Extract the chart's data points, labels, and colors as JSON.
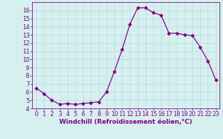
{
  "x": [
    0,
    1,
    2,
    3,
    4,
    5,
    6,
    7,
    8,
    9,
    10,
    11,
    12,
    13,
    14,
    15,
    16,
    17,
    18,
    19,
    20,
    21,
    22,
    23
  ],
  "y": [
    6.5,
    5.8,
    5.0,
    4.5,
    4.6,
    4.5,
    4.6,
    4.7,
    4.8,
    6.0,
    8.5,
    11.2,
    14.3,
    16.3,
    16.3,
    15.7,
    15.4,
    13.2,
    13.2,
    13.0,
    12.9,
    11.5,
    9.8,
    7.5
  ],
  "line_color": "#800080",
  "marker": "D",
  "marker_size": 2.5,
  "bg_color": "#d6f0f0",
  "grid_color": "#b8d8d8",
  "xlabel": "Windchill (Refroidissement éolien,°C)",
  "xlabel_fontsize": 6.5,
  "tick_fontsize": 6.0,
  "ylim": [
    4,
    17
  ],
  "xlim": [
    -0.5,
    23.5
  ],
  "yticks": [
    4,
    5,
    6,
    7,
    8,
    9,
    10,
    11,
    12,
    13,
    14,
    15,
    16
  ],
  "xticks": [
    0,
    1,
    2,
    3,
    4,
    5,
    6,
    7,
    8,
    9,
    10,
    11,
    12,
    13,
    14,
    15,
    16,
    17,
    18,
    19,
    20,
    21,
    22,
    23
  ]
}
